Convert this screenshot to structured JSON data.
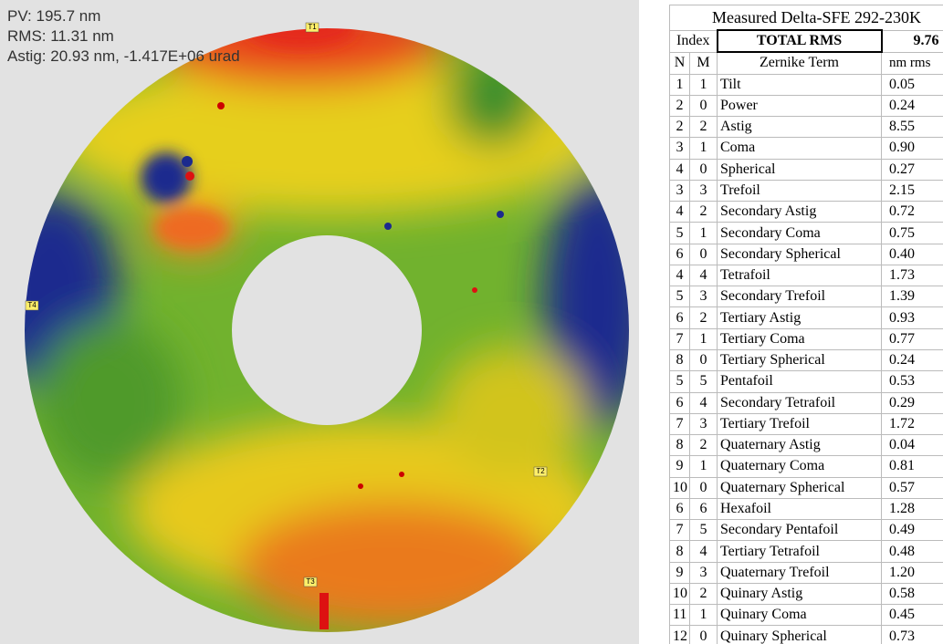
{
  "overlay": {
    "lines": [
      "PV: 195.7 nm",
      "RMS: 11.31 nm",
      "Astig: 20.93 nm, -1.417E+06 urad"
    ]
  },
  "markers": [
    "T1",
    "T2",
    "T3",
    "T4"
  ],
  "table": {
    "title": "Measured Delta-SFE 292-230K",
    "index_header": "Index",
    "total_label": "TOTAL RMS",
    "total_value": "9.76",
    "columns": [
      "N",
      "M",
      "Zernike Term",
      "nm rms"
    ],
    "rows": [
      [
        "1",
        "1",
        "Tilt",
        "0.05"
      ],
      [
        "2",
        "0",
        "Power",
        "0.24"
      ],
      [
        "2",
        "2",
        "Astig",
        "8.55"
      ],
      [
        "3",
        "1",
        "Coma",
        "0.90"
      ],
      [
        "4",
        "0",
        "Spherical",
        "0.27"
      ],
      [
        "3",
        "3",
        "Trefoil",
        "2.15"
      ],
      [
        "4",
        "2",
        "Secondary Astig",
        "0.72"
      ],
      [
        "5",
        "1",
        "Secondary Coma",
        "0.75"
      ],
      [
        "6",
        "0",
        "Secondary Spherical",
        "0.40"
      ],
      [
        "4",
        "4",
        "Tetrafoil",
        "1.73"
      ],
      [
        "5",
        "3",
        "Secondary Trefoil",
        "1.39"
      ],
      [
        "6",
        "2",
        "Tertiary Astig",
        "0.93"
      ],
      [
        "7",
        "1",
        "Tertiary Coma",
        "0.77"
      ],
      [
        "8",
        "0",
        "Tertiary Spherical",
        "0.24"
      ],
      [
        "5",
        "5",
        "Pentafoil",
        "0.53"
      ],
      [
        "6",
        "4",
        "Secondary Tetrafoil",
        "0.29"
      ],
      [
        "7",
        "3",
        "Tertiary Trefoil",
        "1.72"
      ],
      [
        "8",
        "2",
        "Quaternary Astig",
        "0.04"
      ],
      [
        "9",
        "1",
        "Quaternary Coma",
        "0.81"
      ],
      [
        "10",
        "0",
        "Quaternary Spherical",
        "0.57"
      ],
      [
        "6",
        "6",
        "Hexafoil",
        "1.28"
      ],
      [
        "7",
        "5",
        "Secondary Pentafoil",
        "0.49"
      ],
      [
        "8",
        "4",
        "Tertiary Tetrafoil",
        "0.48"
      ],
      [
        "9",
        "3",
        "Quaternary Trefoil",
        "1.20"
      ],
      [
        "10",
        "2",
        "Quinary Astig",
        "0.58"
      ],
      [
        "11",
        "1",
        "Quinary Coma",
        "0.45"
      ],
      [
        "12",
        "0",
        "Quinary Spherical",
        "0.73"
      ]
    ]
  }
}
